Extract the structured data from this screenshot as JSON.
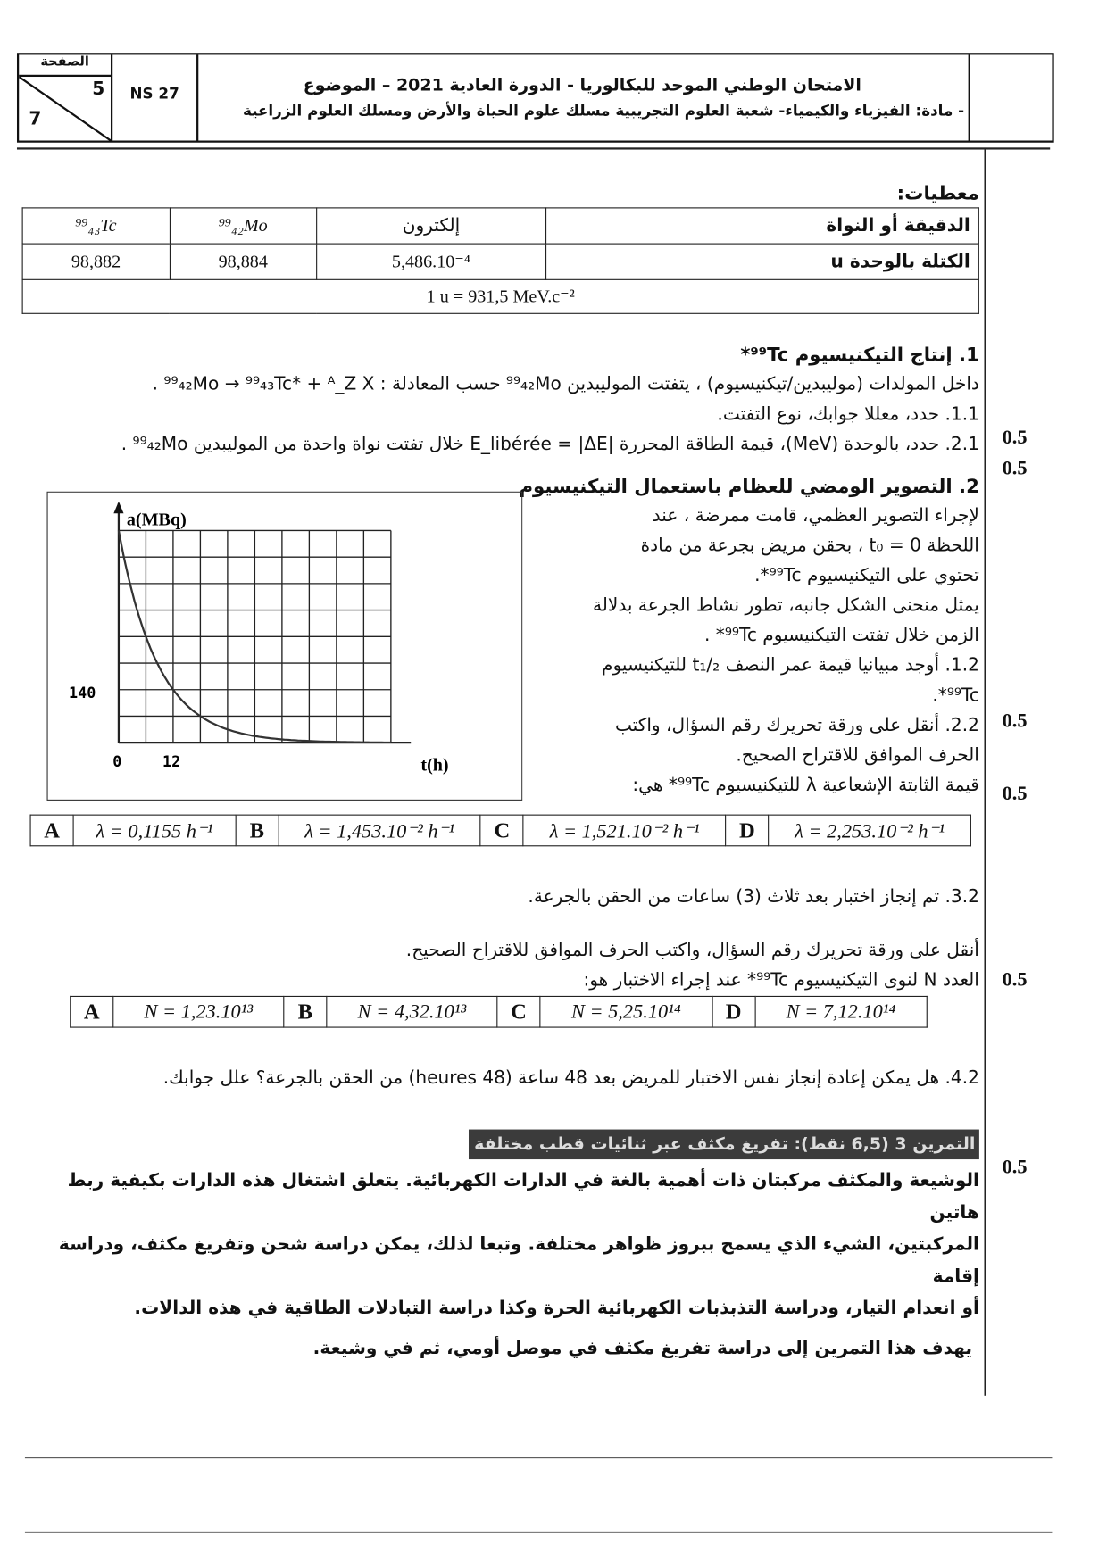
{
  "header": {
    "page_label": "الصفحة",
    "page_number": "5",
    "page_total": "7",
    "code": "NS 27",
    "title": "الامتحان الوطني الموحد للبكالوريا - الدورة العادية 2021 – الموضوع",
    "subtitle": "- مادة: الفيزياء والكيمياء- شعبة العلوم التجريبية مسلك علوم الحياة والأرض ومسلك العلوم الزراعية"
  },
  "givens": {
    "heading": "معطيات:",
    "row1": [
      "الدقيقة أو النواة",
      "إلكترون",
      "⁹⁹₄₂Mo",
      "⁹⁹₄₃Tc"
    ],
    "row2": [
      "الكتلة بالوحدة u",
      "5,486.10⁻⁴",
      "98,884",
      "98,882"
    ],
    "conversion": "1 u = 931,5 MeV.c⁻²"
  },
  "part1": {
    "title": "1. إنتاج التيكنيسيوم ⁹⁹Tc*",
    "intro": "داخل المولدات (موليبدين/تيكنيسيوم) ، يتفتت الموليبدين ⁹⁹₄₂Mo حسب المعادلة : ⁹⁹₄₂Mo → ⁹⁹₄₃Tc* + ᴬ_Z X .",
    "q1": "1.1. حدد، معللا جوابك، نوع التفتت.",
    "q2": "2.1. حدد، بالوحدة (MeV)، قيمة الطاقة المحررة |E_libérée = |ΔE خلال تفتت نواة واحدة من الموليبدين ⁹⁹₄₂Mo .",
    "p1": "0.5",
    "p2": "0.5"
  },
  "part2": {
    "title": "2. التصوير الومضي للعظام باستعمال التيكنيسيوم",
    "text": [
      "لإجراء التصوير العظمي، قامت ممرضة ، عند",
      "اللحظة t₀ = 0 ، بحقن مريض بجرعة من مادة",
      "تحتوي على التيكنيسيوم ⁹⁹Tc*.",
      "يمثل منحنى الشكل جانبه، تطور نشاط الجرعة بدلالة",
      "الزمن خلال تفتت التيكنيسيوم ⁹⁹Tc* ."
    ],
    "q12": [
      "1.2. أوجد مبيانيا قيمة عمر النصف t₁/₂ للتيكنيسيوم",
      "⁹⁹Tc*."
    ],
    "q22": [
      "2.2. أنقل على ورقة تحريرك رقم السؤال، واكتب",
      "الحرف الموافق للاقتراح الصحيح.",
      "قيمة الثابتة الإشعاعية λ للتيكنيسيوم ⁹⁹Tc* هي:"
    ],
    "options1": [
      [
        "A",
        "λ = 0,1155 h⁻¹"
      ],
      [
        "B",
        "λ = 1,453.10⁻² h⁻¹"
      ],
      [
        "C",
        "λ = 1,521.10⁻² h⁻¹"
      ],
      [
        "D",
        "λ = 2,253.10⁻² h⁻¹"
      ]
    ],
    "q32": "3.2. تم إنجاز اختبار بعد ثلاث (3) ساعات من الحقن بالجرعة.",
    "q32b": "أنقل على ورقة تحريرك رقم السؤال، واكتب الحرف الموافق للاقتراح الصحيح.",
    "q32c": "العدد N لنوى التيكنيسيوم ⁹⁹Tc* عند إجراء الاختبار هو:",
    "options2": [
      [
        "A",
        "N = 1,23.10¹³"
      ],
      [
        "B",
        "N = 4,32.10¹³"
      ],
      [
        "C",
        "N = 5,25.10¹⁴"
      ],
      [
        "D",
        "N = 7,12.10¹⁴"
      ]
    ],
    "q42": "4.2. هل يمكن إعادة إنجاز نفس الاختبار للمريض بعد 48 ساعة (48 heures) من الحقن بالجرعة؟ علل جوابك.",
    "p12": "0.5",
    "p22": "0.5",
    "p32": "0.5",
    "p42": "0.5"
  },
  "exercise3": {
    "banner": "التمرين 3 (6,5 نقط): تفريغ مكثف عبر ثنائيات قطب مختلفة",
    "para": [
      "الوشيعة والمكثف مركبتان ذات أهمية بالغة في الدارات الكهربائية. يتعلق اشتغال هذه الدارات بكيفية ربط هاتين",
      "المركبتين، الشيء الذي يسمح ببروز ظواهر مختلفة. وتبعا لذلك، يمكن دراسة شحن وتفريغ مكثف، ودراسة إقامة",
      "أو انعدام التيار، ودراسة التذبذبات الكهربائية الحرة وكذا دراسة التبادلات الطاقية في هذه الدالات."
    ],
    "aim": "يهدف هذا التمرين إلى دراسة تفريغ مكثف في موصل أومي، ثم في وشيعة."
  },
  "chart_data": {
    "type": "line",
    "ylabel": "a(MBq)",
    "xlabel": "t(h)",
    "x_ticks_labeled": [
      "0",
      "12"
    ],
    "y_ticks_labeled": [
      "140"
    ],
    "x_grid_step": 6,
    "y_grid_step": 70,
    "xlim": [
      0,
      60
    ],
    "ylim": [
      0,
      560
    ],
    "grid": true,
    "series": [
      {
        "a0": 560,
        "half_life_h": 6
      }
    ]
  }
}
